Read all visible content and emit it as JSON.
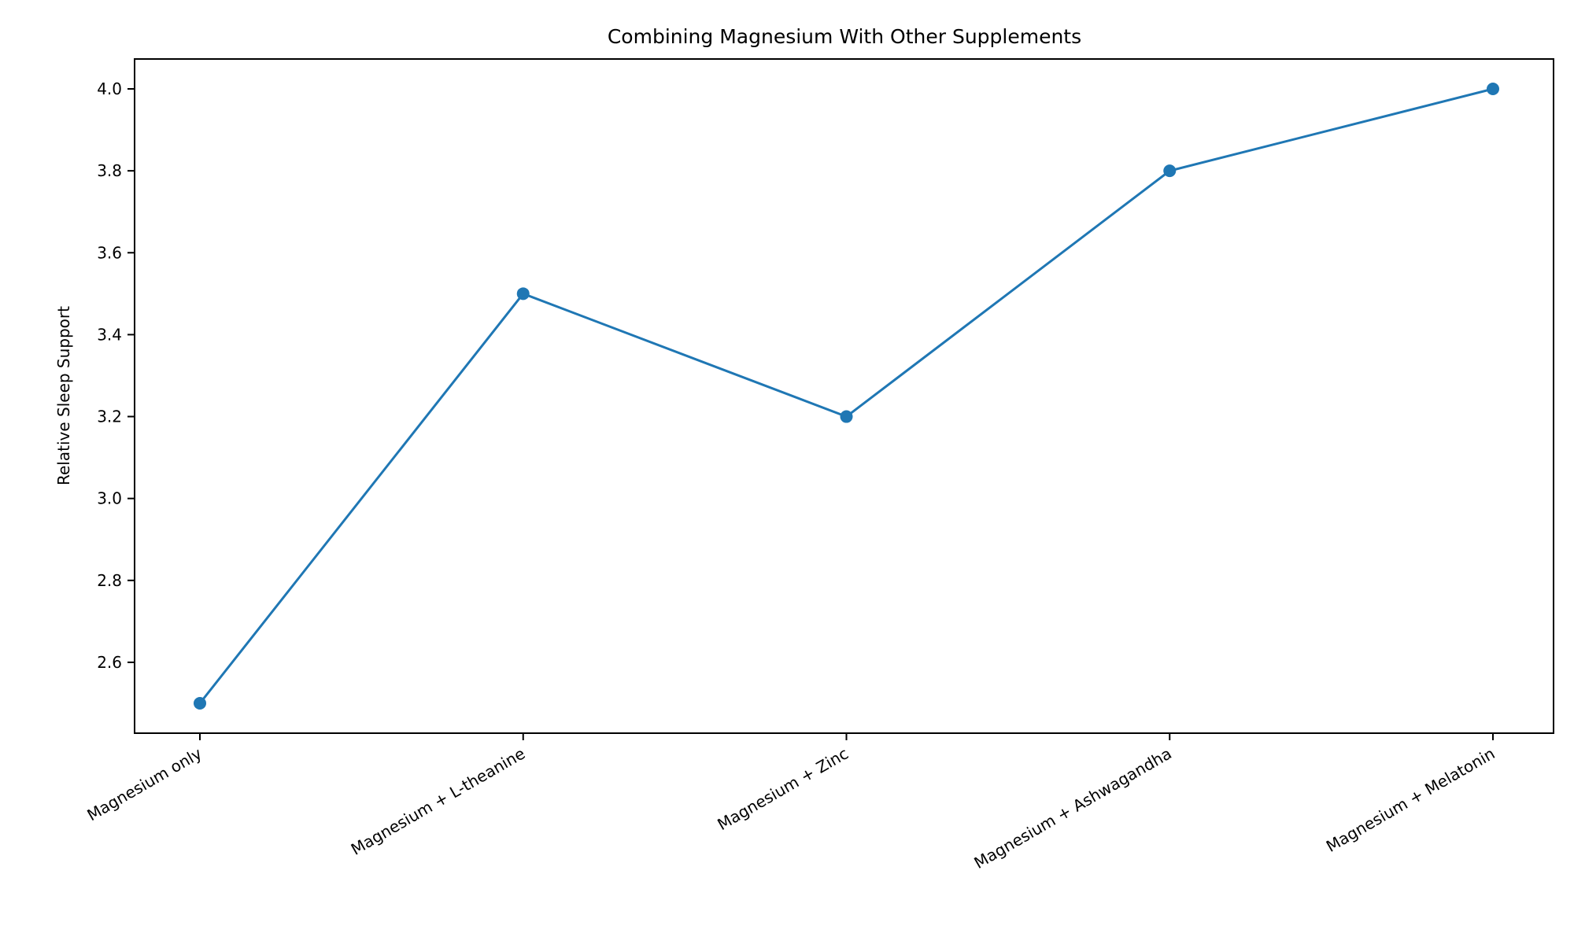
{
  "chart_data": {
    "type": "line",
    "title": "Combining Magnesium With Other Supplements",
    "xlabel": "",
    "ylabel": "Relative Sleep Support",
    "categories": [
      "Magnesium only",
      "Magnesium + L-theanine",
      "Magnesium + Zinc",
      "Magnesium + Ashwagandha",
      "Magnesium + Melatonin"
    ],
    "series": [
      {
        "name": "Relative Sleep Support",
        "values": [
          2.5,
          3.5,
          3.2,
          3.8,
          4.0
        ],
        "color": "#1f77b4",
        "marker": "circle"
      }
    ],
    "ylim": [
      2.427,
      4.073
    ],
    "yticks": [
      "2.6",
      "2.8",
      "3.0",
      "3.2",
      "3.4",
      "3.6",
      "3.8",
      "4.0"
    ],
    "grid": false,
    "legend": "none"
  }
}
